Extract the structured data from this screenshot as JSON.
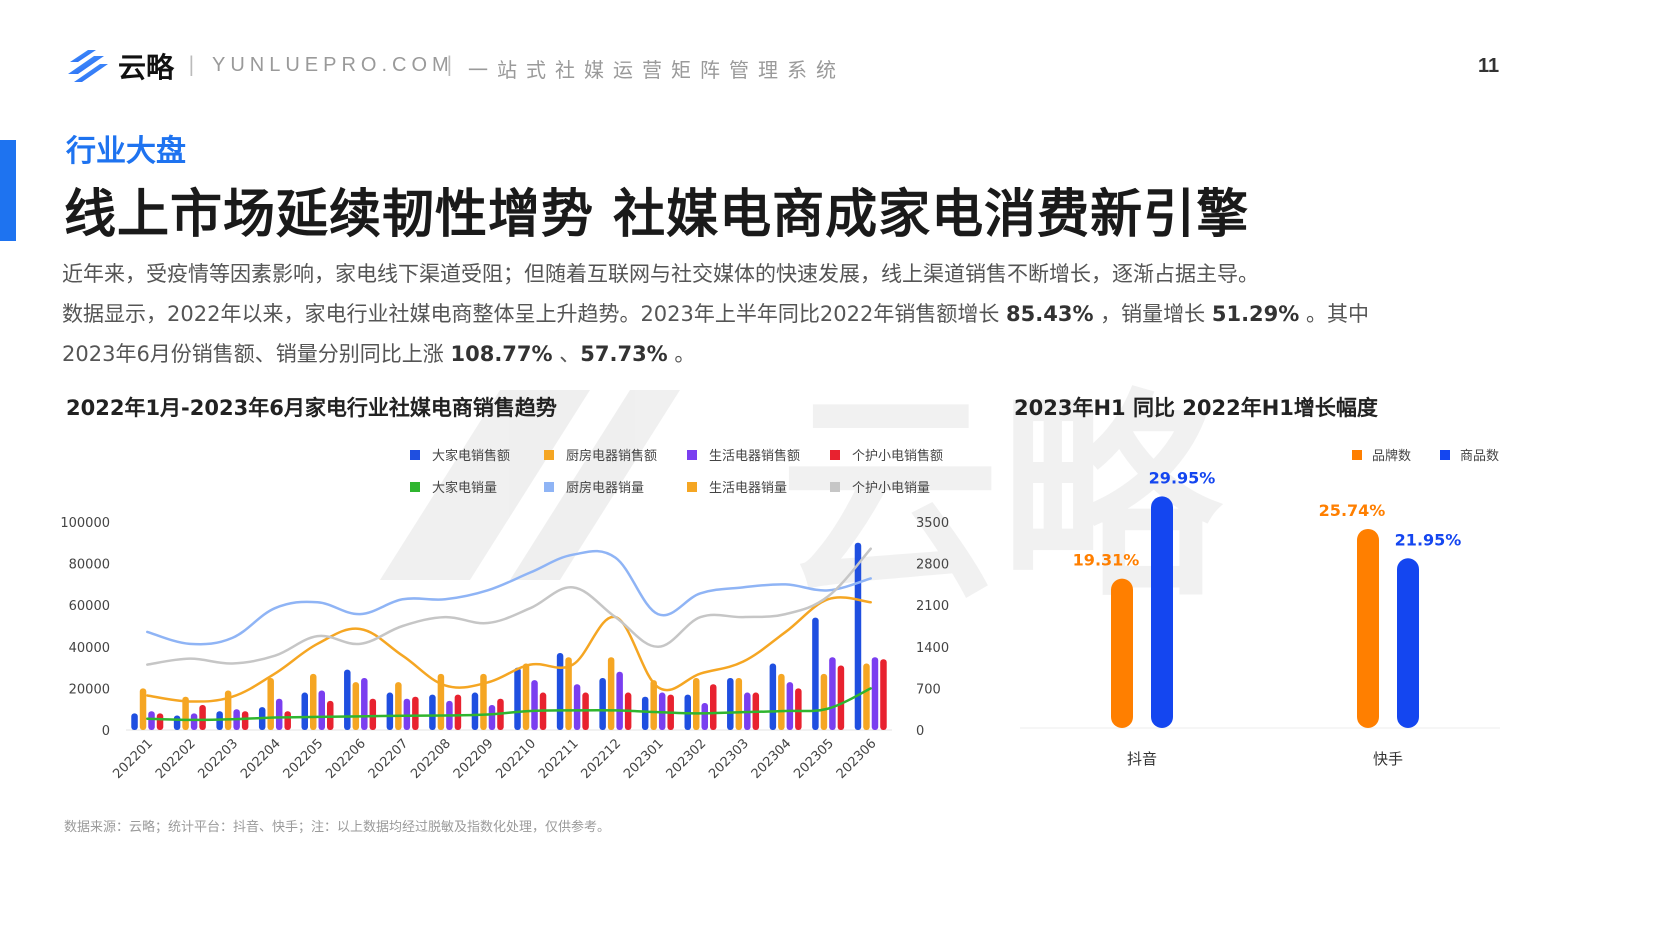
{
  "header": {
    "brand": "云略",
    "site": "YUNLUEPRO.COM",
    "slogan": "一站式社媒运营矩阵管理系统",
    "page_number": "11"
  },
  "section_label": "行业大盘",
  "headline": "线上市场延续韧性增势  社媒电商成家电消费新引擎",
  "paragraph": {
    "line1": "近年来，受疫情等因素影响，家电线下渠道受阻；但随着互联网与社交媒体的快速发展，线上渠道销售不断增长，逐渐占据主导。",
    "line2_a": "数据显示，2022年以来，家电行业社媒电商整体呈上升趋势。2023年上半年同比2022年销售额增长 ",
    "line2_v1": "85.43%",
    "line2_b": " ，销量增长 ",
    "line2_v2": "51.29%",
    "line2_c": " 。其中",
    "line3_a": "2023年6月份销售额、销量分别同比上涨 ",
    "line3_v1": "108.77%",
    "line3_b": " 、",
    "line3_v2": "57.73%",
    "line3_c": " 。"
  },
  "watermark": "云略",
  "source_note": "数据来源：云略；统计平台：抖音、快手；注：以上数据均经过脱敏及指数化处理，仅供参考。",
  "chart_data": [
    {
      "type": "bar",
      "title": "2022年1月-2023年6月家电行业社媒电商销售趋势",
      "categories": [
        "202201",
        "202202",
        "202203",
        "202204",
        "202205",
        "202206",
        "202207",
        "202208",
        "202209",
        "202210",
        "202211",
        "202212",
        "202301",
        "202302",
        "202303",
        "202304",
        "202305",
        "202306"
      ],
      "y_left": {
        "min": 0,
        "max": 100000,
        "ticks": [
          "0",
          "20000",
          "40000",
          "60000",
          "80000",
          "100000"
        ]
      },
      "y_right": {
        "min": 0,
        "max": 3500,
        "ticks": [
          "0",
          "700",
          "1400",
          "2100",
          "2800",
          "3500"
        ]
      },
      "legend": "top-right",
      "bar_series": [
        {
          "name": "大家电销售额",
          "color": "#1f4fe0",
          "axis": "left",
          "values": [
            8000,
            7000,
            9000,
            11000,
            18000,
            29000,
            18000,
            17000,
            18000,
            30000,
            37000,
            25000,
            16000,
            17000,
            25000,
            32000,
            54000,
            90000
          ]
        },
        {
          "name": "厨房电器销售额",
          "color": "#f5a623",
          "axis": "left",
          "values": [
            20000,
            16000,
            19000,
            25000,
            27000,
            23000,
            23000,
            27000,
            27000,
            32000,
            35000,
            35000,
            24000,
            25000,
            25000,
            27000,
            27000,
            32000
          ]
        },
        {
          "name": "生活电器销售额",
          "color": "#7a3ff0",
          "axis": "left",
          "values": [
            9000,
            8000,
            10000,
            15000,
            19000,
            25000,
            15000,
            14000,
            12000,
            24000,
            22000,
            28000,
            18000,
            13000,
            18000,
            23000,
            35000,
            35000
          ]
        },
        {
          "name": "个护小电销售额",
          "color": "#e8222f",
          "axis": "left",
          "values": [
            8000,
            12000,
            9000,
            9000,
            14000,
            15000,
            16000,
            17000,
            15000,
            18000,
            18000,
            18000,
            17000,
            22000,
            18000,
            20000,
            31000,
            34000
          ]
        }
      ],
      "line_series": [
        {
          "name": "大家电销量",
          "color": "#2fb52f",
          "axis": "right",
          "values": [
            190,
            170,
            180,
            210,
            220,
            230,
            240,
            245,
            260,
            320,
            330,
            330,
            300,
            280,
            300,
            320,
            360,
            700
          ]
        },
        {
          "name": "厨房电器销量",
          "color": "#8fb4f5",
          "axis": "right",
          "values": [
            1650,
            1450,
            1550,
            2050,
            2150,
            1950,
            2200,
            2200,
            2350,
            2650,
            2950,
            2900,
            1950,
            2300,
            2400,
            2450,
            2350,
            2550
          ]
        },
        {
          "name": "生活电器销量",
          "color": "#f5a623",
          "axis": "right",
          "values": [
            580,
            480,
            560,
            950,
            1450,
            1700,
            1250,
            750,
            800,
            1100,
            1100,
            1900,
            720,
            950,
            1150,
            1650,
            2200,
            2150
          ]
        },
        {
          "name": "个护小电销量",
          "color": "#c6c6c6",
          "axis": "right",
          "values": [
            1100,
            1200,
            1120,
            1250,
            1580,
            1450,
            1750,
            1900,
            1800,
            2050,
            2400,
            1900,
            1400,
            1900,
            1900,
            1950,
            2250,
            3050
          ]
        }
      ]
    },
    {
      "type": "bar",
      "title": "2023年H1 同比 2022年H1增长幅度",
      "categories": [
        "抖音",
        "快手"
      ],
      "legend": "top-right",
      "series": [
        {
          "name": "品牌数",
          "color": "#ff7f00",
          "values": [
            19.31,
            25.74
          ],
          "labels": [
            "19.31%",
            "25.74%"
          ]
        },
        {
          "name": "商品数",
          "color": "#1446f0",
          "values": [
            29.95,
            21.95
          ],
          "labels": [
            "29.95%",
            "21.95%"
          ]
        }
      ]
    }
  ]
}
